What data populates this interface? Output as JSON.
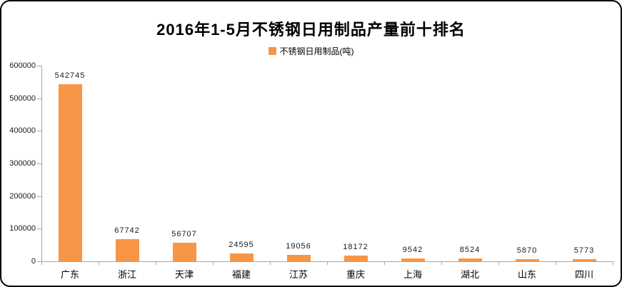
{
  "frame": {
    "background": "#ffffff",
    "border_color": "#000000"
  },
  "chart_data": {
    "type": "bar",
    "title": "2016年1-5月不锈钢日用制品产量前十排名",
    "legend": [
      {
        "label": "不锈钢日用制品(吨)",
        "color": "#f79646"
      }
    ],
    "legend_position": "top",
    "categories": [
      "广东",
      "浙江",
      "天津",
      "福建",
      "江苏",
      "重庆",
      "上海",
      "湖北",
      "山东",
      "四川"
    ],
    "series": [
      {
        "name": "不锈钢日用制品(吨)",
        "values": [
          542745,
          67742,
          56707,
          24595,
          19056,
          18172,
          9542,
          8524,
          5870,
          5773
        ]
      }
    ],
    "values": [
      542745,
      67742,
      56707,
      24595,
      19056,
      18172,
      9542,
      8524,
      5870,
      5773
    ],
    "data_labels": [
      "542745",
      "67742",
      "56707",
      "24595",
      "19056",
      "18172",
      "9542",
      "8524",
      "5870",
      "5773"
    ],
    "xlabel": "",
    "ylabel": "",
    "ylim": [
      0,
      600000
    ],
    "ytick_step": 100000,
    "ytick_labels": [
      "0",
      "100000",
      "200000",
      "300000",
      "400000",
      "500000",
      "600000"
    ],
    "grid": false,
    "bar_color": "#f79646",
    "axis_color": "#a6a6a6",
    "text_color": "#000000"
  }
}
